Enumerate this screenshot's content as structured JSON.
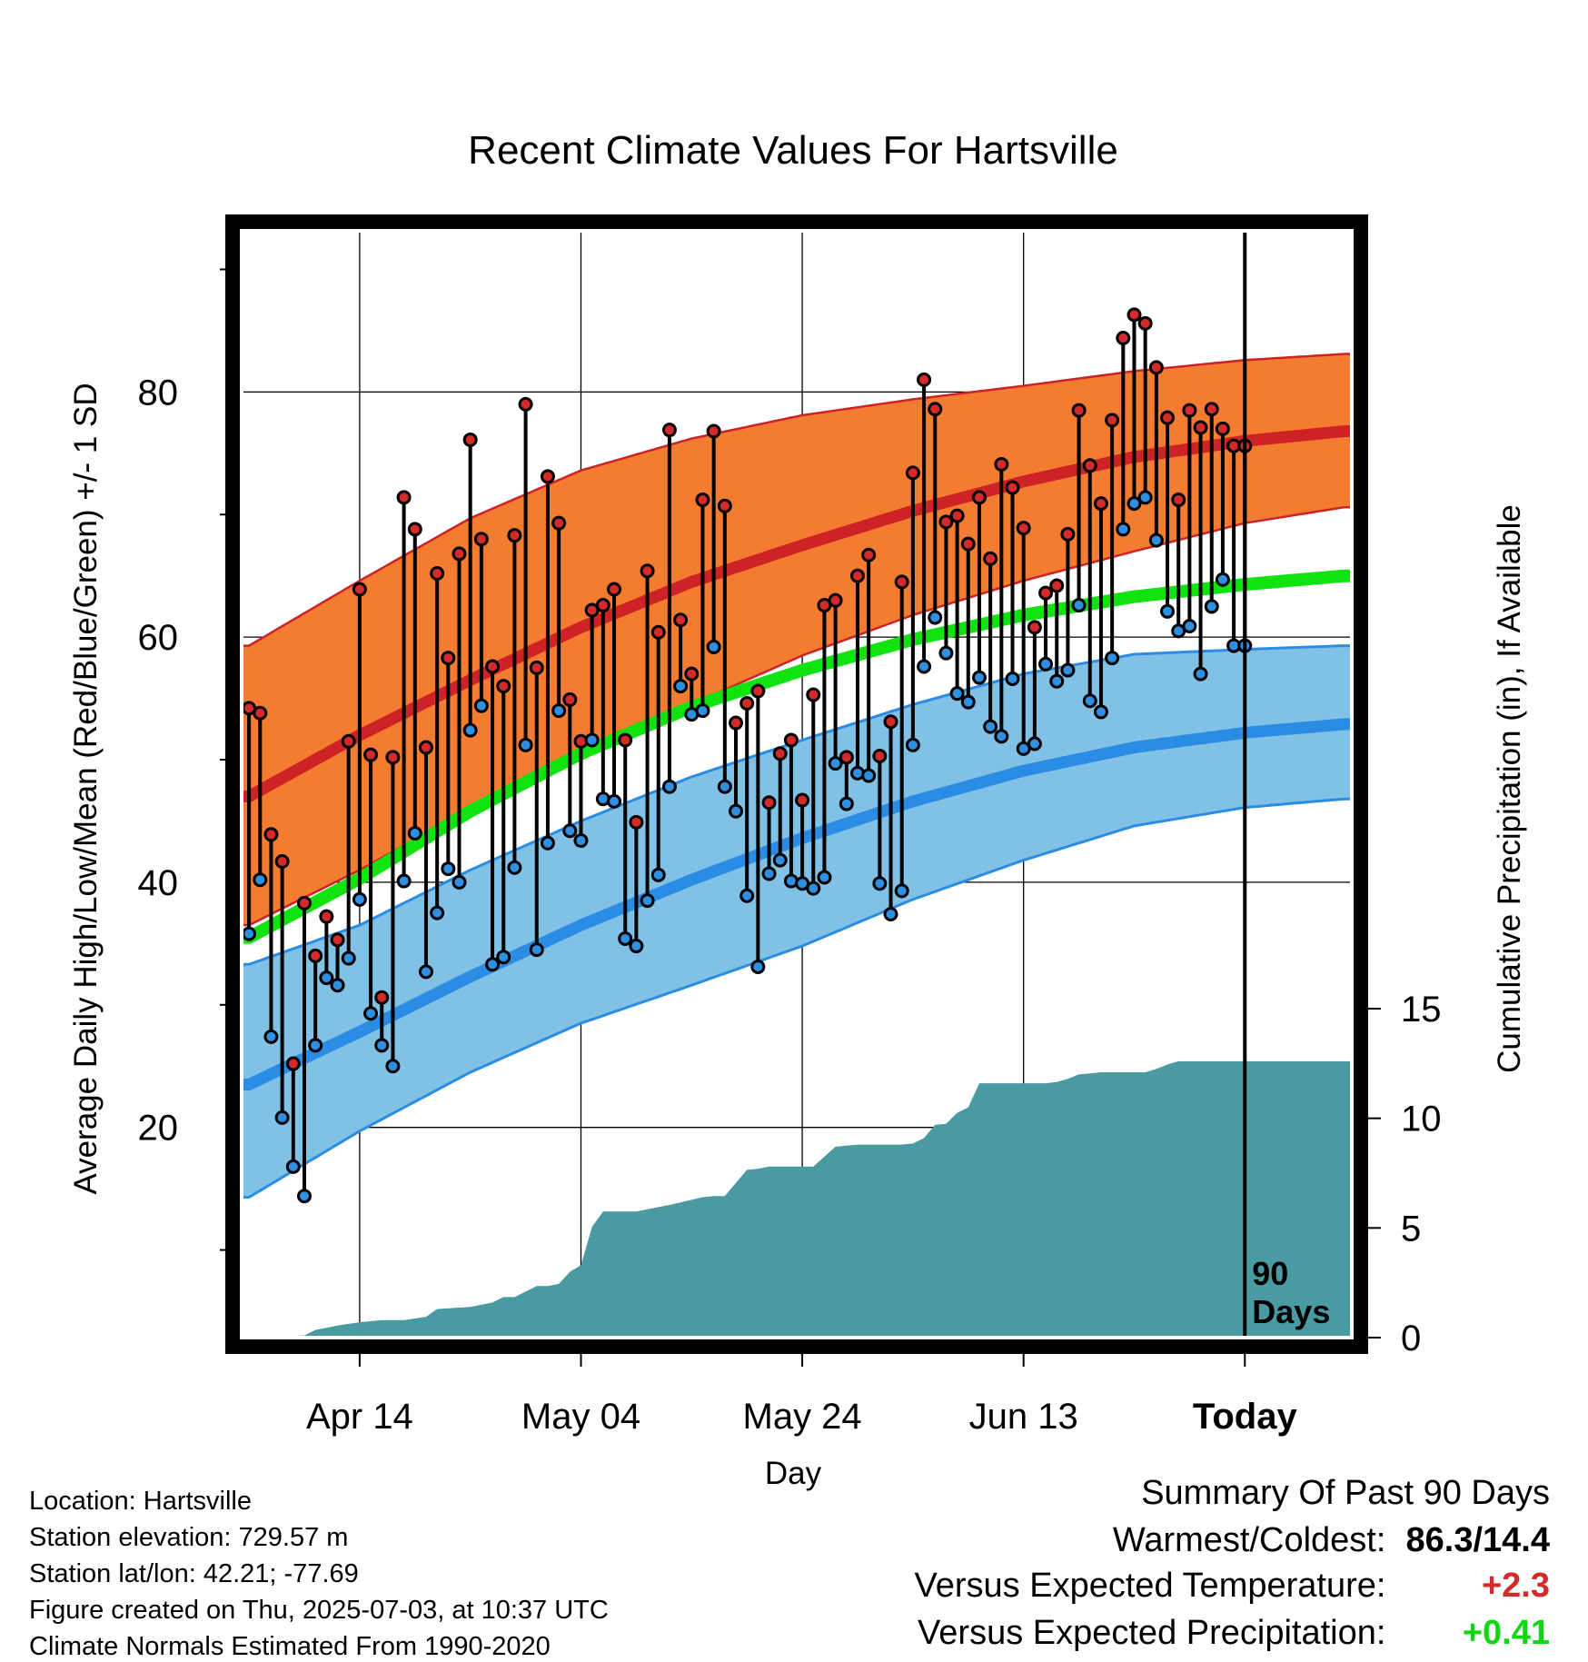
{
  "chart_data": {
    "type": "line",
    "title": "Recent Climate Values For Hartsville",
    "xlabel": "Day",
    "ylabel": "Average Daily High/Low/Mean (Red/Blue/Green) +/- 1 SD",
    "y2label": "Cumulative Precipitation (in), If Available",
    "x_tick_labels": [
      "Apr 14",
      "May 04",
      "May 24",
      "Jun 13",
      "Today"
    ],
    "x_tick_day_index": [
      10,
      30,
      50,
      70,
      90
    ],
    "xlim_day_index": [
      -0.5,
      99.5
    ],
    "ylim": [
      3,
      93
    ],
    "y_ticks": [
      20,
      40,
      60,
      80
    ],
    "y2_ticks": [
      0,
      5,
      10,
      15
    ],
    "y2lim": [
      0,
      15
    ],
    "grid": true,
    "today_marker": {
      "day_index": 90,
      "label_line1": "90",
      "label_line2": "Days"
    },
    "colors": {
      "high_band": "#f47c31",
      "high_mean": "#cd2226",
      "low_band": "#82c1e6",
      "low_mean": "#2a8de3",
      "mean": "#11e311",
      "precip": "#4a9aa4",
      "high_point": "#d42a2a",
      "low_point": "#2f8fe0"
    },
    "normal_high": {
      "x": [
        0,
        10,
        20,
        30,
        40,
        50,
        60,
        70,
        80,
        90,
        99
      ],
      "mean": [
        47.0,
        52.0,
        56.5,
        60.8,
        64.5,
        67.5,
        70.3,
        72.7,
        74.7,
        76.0,
        76.8
      ],
      "upper": [
        59.3,
        64.6,
        69.7,
        73.6,
        76.2,
        78.1,
        79.4,
        80.5,
        81.7,
        82.6,
        83.1
      ],
      "lower": [
        36.5,
        41.0,
        46.0,
        50.0,
        54.5,
        58.5,
        61.8,
        64.6,
        67.0,
        69.3,
        70.6
      ]
    },
    "normal_mean": {
      "x": [
        0,
        10,
        20,
        30,
        40,
        50,
        60,
        70,
        80,
        90,
        99
      ],
      "values": [
        35.5,
        40.3,
        45.8,
        50.5,
        54.3,
        57.3,
        59.8,
        61.8,
        63.3,
        64.3,
        65.0
      ]
    },
    "normal_low": {
      "x": [
        0,
        10,
        20,
        30,
        40,
        50,
        60,
        70,
        80,
        90,
        99
      ],
      "mean": [
        23.5,
        27.8,
        32.3,
        36.5,
        40.2,
        43.6,
        46.6,
        49.1,
        51.0,
        52.2,
        52.9
      ],
      "upper": [
        33.3,
        36.5,
        41.0,
        45.0,
        48.6,
        51.6,
        54.5,
        57.0,
        58.6,
        59.0,
        59.3
      ],
      "lower": [
        14.3,
        19.7,
        24.5,
        28.5,
        31.6,
        34.8,
        38.6,
        41.8,
        44.6,
        46.1,
        46.8
      ]
    },
    "daily": {
      "day_index": [
        0,
        1,
        2,
        3,
        4,
        5,
        6,
        7,
        8,
        9,
        10,
        11,
        12,
        13,
        14,
        15,
        16,
        17,
        18,
        19,
        20,
        21,
        22,
        23,
        24,
        25,
        26,
        27,
        28,
        29,
        30,
        31,
        32,
        33,
        34,
        35,
        36,
        37,
        38,
        39,
        40,
        41,
        42,
        43,
        44,
        45,
        46,
        47,
        48,
        49,
        50,
        51,
        52,
        53,
        54,
        55,
        56,
        57,
        58,
        59,
        60,
        61,
        62,
        63,
        64,
        65,
        66,
        67,
        68,
        69,
        70,
        71,
        72,
        73,
        74,
        75,
        76,
        77,
        78,
        79,
        80,
        81,
        82,
        83,
        84,
        85,
        86,
        87,
        88,
        89,
        90
      ],
      "high": [
        54.2,
        53.8,
        43.9,
        41.7,
        25.2,
        38.3,
        34.0,
        37.2,
        35.3,
        51.5,
        63.9,
        50.4,
        30.6,
        50.2,
        71.4,
        68.8,
        51.0,
        65.2,
        58.3,
        66.8,
        76.1,
        68.0,
        57.6,
        56.0,
        68.3,
        79.0,
        57.5,
        73.1,
        69.3,
        54.9,
        51.5,
        62.2,
        62.6,
        63.9,
        51.6,
        44.9,
        65.4,
        60.4,
        76.9,
        61.4,
        57.0,
        71.2,
        76.8,
        70.7,
        53.0,
        54.6,
        55.6,
        46.5,
        50.5,
        51.6,
        46.7,
        55.3,
        62.6,
        63.0,
        50.2,
        65.0,
        66.7,
        50.3,
        53.1,
        64.5,
        73.4,
        81.0,
        78.6,
        69.4,
        69.9,
        67.6,
        71.4,
        66.4,
        74.1,
        72.2,
        68.9,
        60.8,
        63.6,
        64.2,
        68.4,
        78.5,
        74.0,
        70.9,
        77.7,
        84.4,
        86.3,
        85.6,
        82.0,
        77.9,
        71.2,
        78.5,
        77.1,
        78.6,
        77.0,
        75.6,
        75.6
      ],
      "low": [
        35.8,
        40.2,
        27.4,
        20.8,
        16.8,
        14.4,
        26.7,
        32.2,
        31.6,
        33.8,
        38.6,
        29.3,
        26.7,
        25.0,
        40.1,
        44.0,
        32.7,
        37.5,
        41.1,
        40.0,
        52.4,
        54.4,
        33.3,
        33.9,
        41.2,
        51.2,
        34.5,
        43.2,
        54.0,
        44.2,
        43.4,
        51.6,
        46.8,
        46.6,
        35.4,
        34.8,
        38.5,
        40.6,
        47.8,
        56.0,
        53.7,
        54.0,
        59.2,
        47.8,
        45.8,
        38.9,
        33.1,
        40.7,
        41.8,
        40.1,
        39.9,
        39.5,
        40.4,
        49.7,
        46.4,
        48.9,
        48.7,
        39.9,
        37.4,
        39.3,
        51.2,
        57.6,
        61.6,
        58.7,
        55.4,
        54.7,
        56.7,
        52.7,
        51.9,
        56.6,
        50.9,
        51.3,
        57.8,
        56.4,
        57.3,
        62.6,
        54.8,
        53.9,
        58.3,
        68.8,
        70.9,
        71.4,
        67.9,
        62.1,
        60.5,
        60.9,
        57.0,
        62.5,
        64.7,
        59.3,
        59.3
      ]
    },
    "cumulative_precip": {
      "day_index": [
        -0.5,
        5,
        6,
        8,
        10,
        12,
        14,
        16,
        17,
        20,
        22,
        23,
        24,
        26,
        27,
        28,
        29,
        30,
        31,
        32,
        33,
        35,
        37,
        38,
        41,
        42,
        43,
        45,
        46,
        47,
        48,
        49,
        51,
        53,
        54,
        55,
        56,
        57,
        58,
        59,
        60,
        61,
        62,
        63,
        64,
        65,
        66,
        67,
        68,
        69,
        70,
        71,
        72,
        73,
        74,
        75,
        76,
        77,
        78,
        79,
        80,
        81,
        82,
        83,
        84,
        85,
        86,
        87,
        88,
        89,
        90,
        91,
        92,
        99.5
      ],
      "values": [
        0,
        0.1,
        0.35,
        0.55,
        0.7,
        0.8,
        0.8,
        0.95,
        1.3,
        1.4,
        1.6,
        1.85,
        1.85,
        2.35,
        2.35,
        2.45,
        3.0,
        3.3,
        5.05,
        5.75,
        5.75,
        5.75,
        5.95,
        6.05,
        6.4,
        6.45,
        6.45,
        7.65,
        7.7,
        7.8,
        7.8,
        7.8,
        7.8,
        8.7,
        8.75,
        8.8,
        8.8,
        8.8,
        8.8,
        8.8,
        8.85,
        9.1,
        9.7,
        9.75,
        10.25,
        10.5,
        11.6,
        11.6,
        11.6,
        11.6,
        11.6,
        11.6,
        11.6,
        11.65,
        11.8,
        12.0,
        12.05,
        12.1,
        12.1,
        12.1,
        12.1,
        12.1,
        12.25,
        12.45,
        12.6,
        12.6,
        12.6,
        12.6,
        12.6,
        12.6,
        12.6,
        12.6,
        12.6,
        12.6
      ]
    }
  },
  "footer": {
    "location": "Location: Hartsville",
    "elevation": "Station elevation: 729.57 m",
    "latlon": "Station lat/lon: 42.21; -77.69",
    "created": "Figure created on Thu, 2025-07-03, at 10:37 UTC",
    "normals": "Climate Normals Estimated From 1990-2020"
  },
  "summary": {
    "title": "Summary Of Past 90 Days",
    "warm_cold_label": "Warmest/Coldest:",
    "warm_cold_value": "86.3/14.4",
    "temp_label": "Versus Expected Temperature:",
    "temp_value": "+2.3",
    "temp_color": "#d42a2a",
    "precip_label": "Versus Expected Precipitation:",
    "precip_value": "+0.41",
    "precip_color": "#11d611"
  }
}
